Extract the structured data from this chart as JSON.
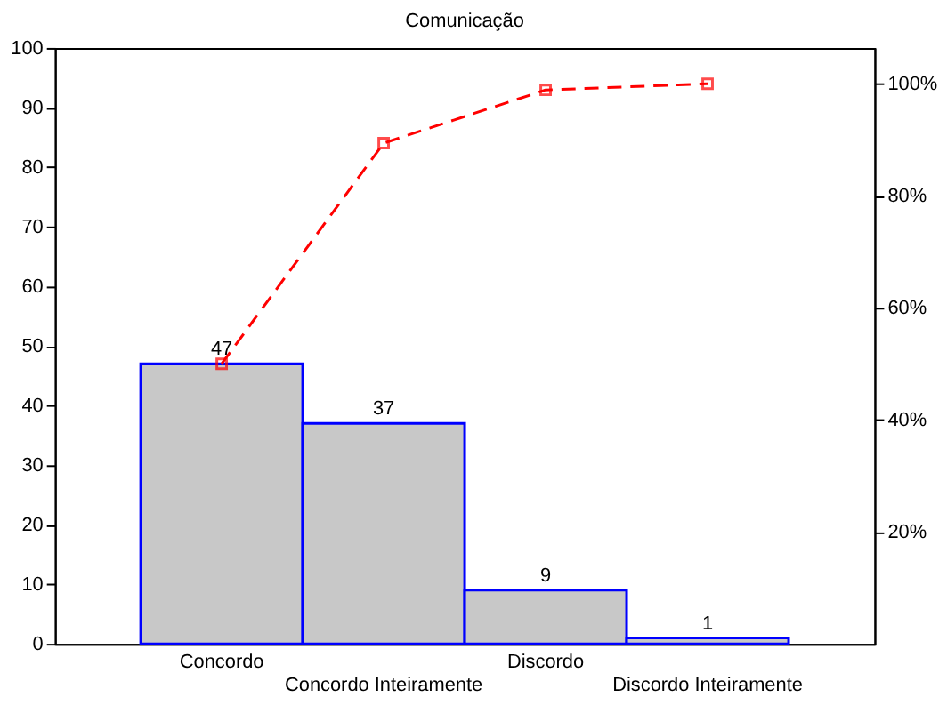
{
  "chart_data": {
    "type": "bar",
    "title": "Comunicação",
    "categories": [
      "Concordo",
      "Concordo Inteiramente",
      "Discordo",
      "Discordo Inteiramente"
    ],
    "series": [
      {
        "color": "#c8c8c8",
        "values": [
          47,
          37,
          9,
          1
        ],
        "value_labels": [
          "47",
          "37",
          "9",
          "1"
        ]
      },
      {
        "type": "line",
        "axis": "y2",
        "color": "#ff0000",
        "marker": "square",
        "line_style": "dashed",
        "values": [
          50.0,
          89.4,
          98.9,
          100
        ]
      }
    ],
    "ylim": [
      0,
      100
    ],
    "yticks": [
      0,
      10,
      20,
      30,
      40,
      50,
      60,
      70,
      80,
      90,
      100
    ],
    "y2lim": [
      0,
      106.4
    ],
    "y2ticks": [
      {
        "value": 20,
        "label": "20%"
      },
      {
        "value": 40,
        "label": "40%"
      },
      {
        "value": 60,
        "label": "60%"
      },
      {
        "value": 80,
        "label": "80%"
      },
      {
        "value": 100,
        "label": "100%"
      }
    ],
    "grid": false
  }
}
